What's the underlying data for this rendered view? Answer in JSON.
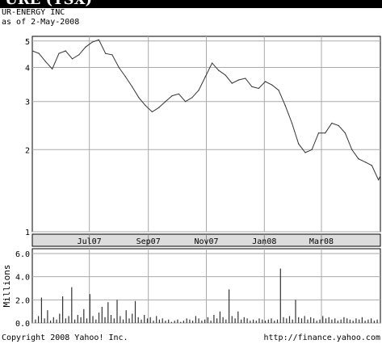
{
  "header": {
    "ticker": "URE (TSX)",
    "company": "UR-ENERGY INC",
    "as_of": "as of 2-May-2008"
  },
  "footer": {
    "copyright": "Copyright 2008 Yahoo! Inc.",
    "url": "http://finance.yahoo.com"
  },
  "chart_data": [
    {
      "type": "line",
      "title": "",
      "xlabel": "",
      "ylabel": "",
      "scale": "log",
      "ylim": [
        1,
        5.2
      ],
      "yticks": [
        1,
        2,
        3,
        4,
        5
      ],
      "ytick_labels": [
        "1",
        "2",
        "3",
        "4",
        "5"
      ],
      "xticks": [
        "2007-07-01",
        "2007-09-01",
        "2007-11-01",
        "2008-01-01",
        "2008-03-01"
      ],
      "xtick_labels": [
        "Jul07",
        "Sep07",
        "Nov07",
        "Jan08",
        "Mar08"
      ],
      "xlim": [
        "2007-05-02",
        "2008-05-02"
      ],
      "grid": true,
      "line_color": "#333333",
      "series": [
        {
          "x": [
            "2007-05-02",
            "2007-05-09",
            "2007-05-16",
            "2007-05-23",
            "2007-05-30",
            "2007-06-06",
            "2007-06-13",
            "2007-06-20",
            "2007-06-27",
            "2007-07-04",
            "2007-07-11",
            "2007-07-18",
            "2007-07-25",
            "2007-08-01",
            "2007-08-08",
            "2007-08-15",
            "2007-08-22",
            "2007-08-29",
            "2007-09-05",
            "2007-09-12",
            "2007-09-19",
            "2007-09-26",
            "2007-10-03",
            "2007-10-10",
            "2007-10-17",
            "2007-10-24",
            "2007-10-31",
            "2007-11-07",
            "2007-11-14",
            "2007-11-21",
            "2007-11-28",
            "2007-12-05",
            "2007-12-12",
            "2007-12-19",
            "2007-12-26",
            "2008-01-02",
            "2008-01-09",
            "2008-01-16",
            "2008-01-23",
            "2008-01-30",
            "2008-02-06",
            "2008-02-13",
            "2008-02-20",
            "2008-02-27",
            "2008-03-05",
            "2008-03-12",
            "2008-03-19",
            "2008-03-26",
            "2008-04-02",
            "2008-04-09",
            "2008-04-16",
            "2008-04-23",
            "2008-04-30",
            "2008-05-02"
          ],
          "values": [
            4.6,
            4.5,
            4.2,
            3.95,
            4.5,
            4.6,
            4.3,
            4.45,
            4.75,
            4.95,
            5.05,
            4.5,
            4.45,
            4.0,
            3.7,
            3.4,
            3.1,
            2.9,
            2.75,
            2.85,
            3.0,
            3.15,
            3.2,
            3.0,
            3.1,
            3.3,
            3.7,
            4.15,
            3.9,
            3.75,
            3.5,
            3.6,
            3.65,
            3.4,
            3.35,
            3.55,
            3.45,
            3.3,
            2.9,
            2.5,
            2.1,
            1.95,
            2.0,
            2.3,
            2.3,
            2.5,
            2.45,
            2.3,
            2.0,
            1.85,
            1.8,
            1.75,
            1.55,
            1.6
          ]
        }
      ]
    },
    {
      "type": "bar",
      "title": "",
      "xlabel": "",
      "ylabel": "Millions",
      "ylim": [
        0,
        6.0
      ],
      "yticks": [
        0,
        2,
        4,
        6
      ],
      "ytick_labels": [
        "0.0",
        "2.0",
        "4.0",
        "6.0"
      ],
      "grid": true,
      "bar_color": "#333333",
      "values": [
        0.3,
        0.6,
        2.2,
        0.4,
        1.1,
        0.2,
        0.5,
        0.3,
        0.8,
        2.3,
        0.4,
        0.6,
        3.1,
        0.3,
        0.7,
        0.5,
        1.2,
        0.4,
        2.5,
        0.6,
        0.3,
        0.9,
        1.4,
        0.5,
        1.8,
        0.7,
        0.4,
        2.0,
        0.6,
        0.3,
        1.1,
        0.4,
        0.8,
        1.9,
        0.5,
        0.3,
        0.7,
        0.4,
        0.5,
        0.2,
        0.6,
        0.3,
        0.4,
        0.2,
        0.3,
        0.1,
        0.2,
        0.3,
        0.1,
        0.2,
        0.4,
        0.3,
        0.2,
        0.6,
        0.4,
        0.2,
        0.3,
        0.5,
        0.2,
        0.7,
        0.4,
        1.0,
        0.5,
        0.3,
        2.9,
        0.6,
        0.4,
        1.0,
        0.3,
        0.5,
        0.4,
        0.2,
        0.3,
        0.2,
        0.4,
        0.3,
        0.2,
        0.3,
        0.4,
        0.2,
        0.3,
        4.7,
        0.5,
        0.4,
        0.6,
        0.3,
        2.0,
        0.5,
        0.4,
        0.6,
        0.3,
        0.5,
        0.4,
        0.2,
        0.3,
        0.6,
        0.4,
        0.5,
        0.3,
        0.4,
        0.2,
        0.3,
        0.5,
        0.4,
        0.3,
        0.2,
        0.4,
        0.3,
        0.5,
        0.2,
        0.3,
        0.4,
        0.2,
        0.3
      ]
    }
  ]
}
